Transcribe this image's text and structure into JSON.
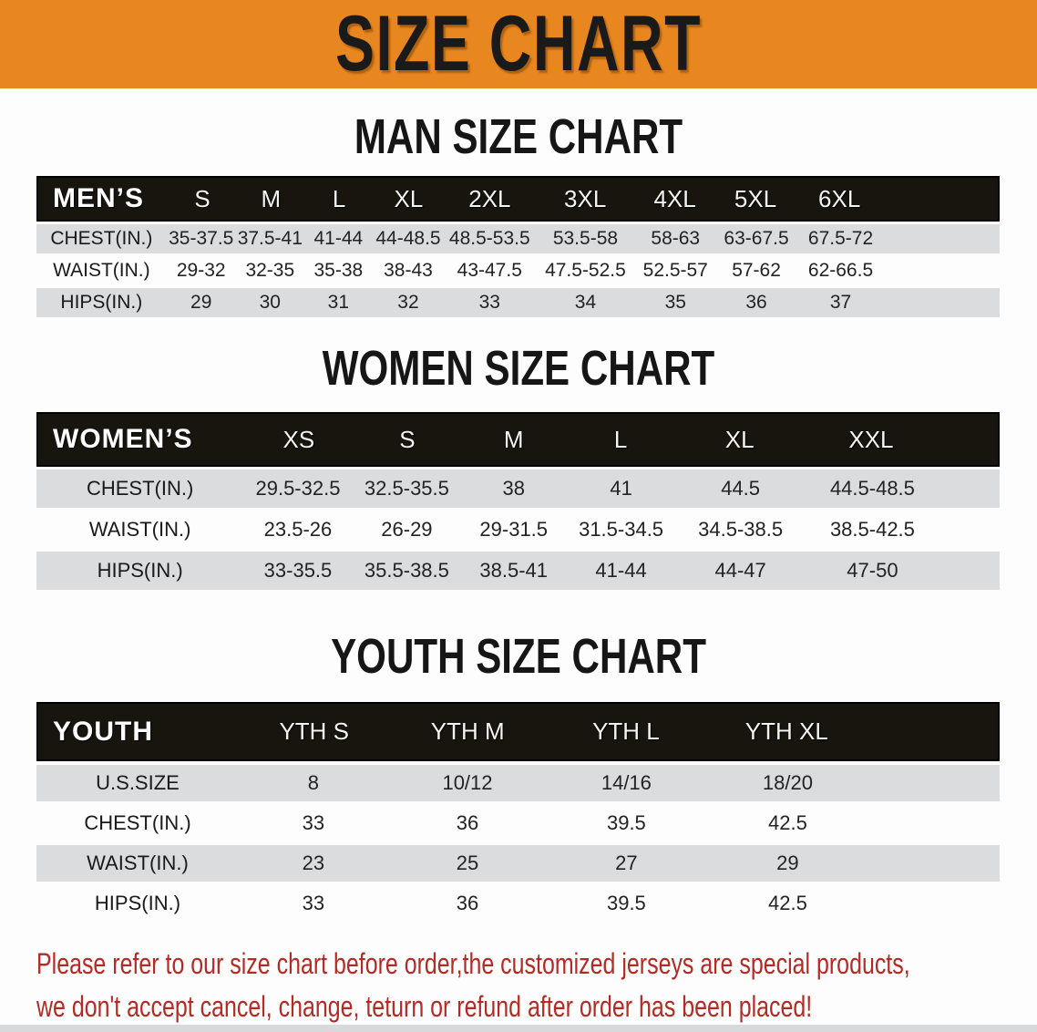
{
  "banner": {
    "title": "SIZE CHART",
    "bg_color": "#E8861F",
    "text_color": "#1A1A1A"
  },
  "sections": {
    "men": {
      "heading": "MAN SIZE CHART",
      "table": {
        "header": [
          "MEN’S",
          "S",
          "M",
          "L",
          "XL",
          "2XL",
          "3XL",
          "4XL",
          "5XL",
          "6XL"
        ],
        "rows": [
          {
            "label": "CHEST(IN.)",
            "values": [
              "35-37.5",
              "37.5-41",
              "41-44",
              "44-48.5",
              "48.5-53.5",
              "53.5-58",
              "58-63",
              "63-67.5",
              "67.5-72"
            ]
          },
          {
            "label": "WAIST(IN.)",
            "values": [
              "29-32",
              "32-35",
              "35-38",
              "38-43",
              "43-47.5",
              "47.5-52.5",
              "52.5-57",
              "57-62",
              "62-66.5"
            ]
          },
          {
            "label": "HIPS(IN.)",
            "values": [
              "29",
              "30",
              "31",
              "32",
              "33",
              "34",
              "35",
              "36",
              "37"
            ]
          }
        ]
      }
    },
    "women": {
      "heading": "WOMEN SIZE CHART",
      "table": {
        "header": [
          "WOMEN’S",
          "XS",
          "S",
          "M",
          "L",
          "XL",
          "XXL"
        ],
        "rows": [
          {
            "label": "CHEST(IN.)",
            "values": [
              "29.5-32.5",
              "32.5-35.5",
              "38",
              "41",
              "44.5",
              "44.5-48.5"
            ]
          },
          {
            "label": "WAIST(IN.)",
            "values": [
              "23.5-26",
              "26-29",
              "29-31.5",
              "31.5-34.5",
              "34.5-38.5",
              "38.5-42.5"
            ]
          },
          {
            "label": "HIPS(IN.)",
            "values": [
              "33-35.5",
              "35.5-38.5",
              "38.5-41",
              "41-44",
              "44-47",
              "47-50"
            ]
          }
        ]
      }
    },
    "youth": {
      "heading": "YOUTH SIZE CHART",
      "table": {
        "header": [
          "YOUTH",
          "YTH S",
          "YTH M",
          "YTH L",
          "YTH XL"
        ],
        "rows": [
          {
            "label": "U.S.SIZE",
            "values": [
              "8",
              "10/12",
              "14/16",
              "18/20"
            ]
          },
          {
            "label": "CHEST(IN.)",
            "values": [
              "33",
              "36",
              "39.5",
              "42.5"
            ]
          },
          {
            "label": "WAIST(IN.)",
            "values": [
              "23",
              "25",
              "27",
              "29"
            ]
          },
          {
            "label": "HIPS(IN.)",
            "values": [
              "33",
              "36",
              "39.5",
              "42.5"
            ]
          }
        ]
      }
    }
  },
  "footer": {
    "line1": "Please refer to our size chart before order,the customized jerseys are special products,",
    "line2": "we don't accept cancel, change, teturn or refund after order has been placed!",
    "text_color": "#B32B24"
  },
  "colors": {
    "table_header_bg": "#18150F",
    "stripe_gray": "#DBDCDE",
    "bottom_bar": "#D7D9DA",
    "page_bg": "#FDFDFD"
  }
}
